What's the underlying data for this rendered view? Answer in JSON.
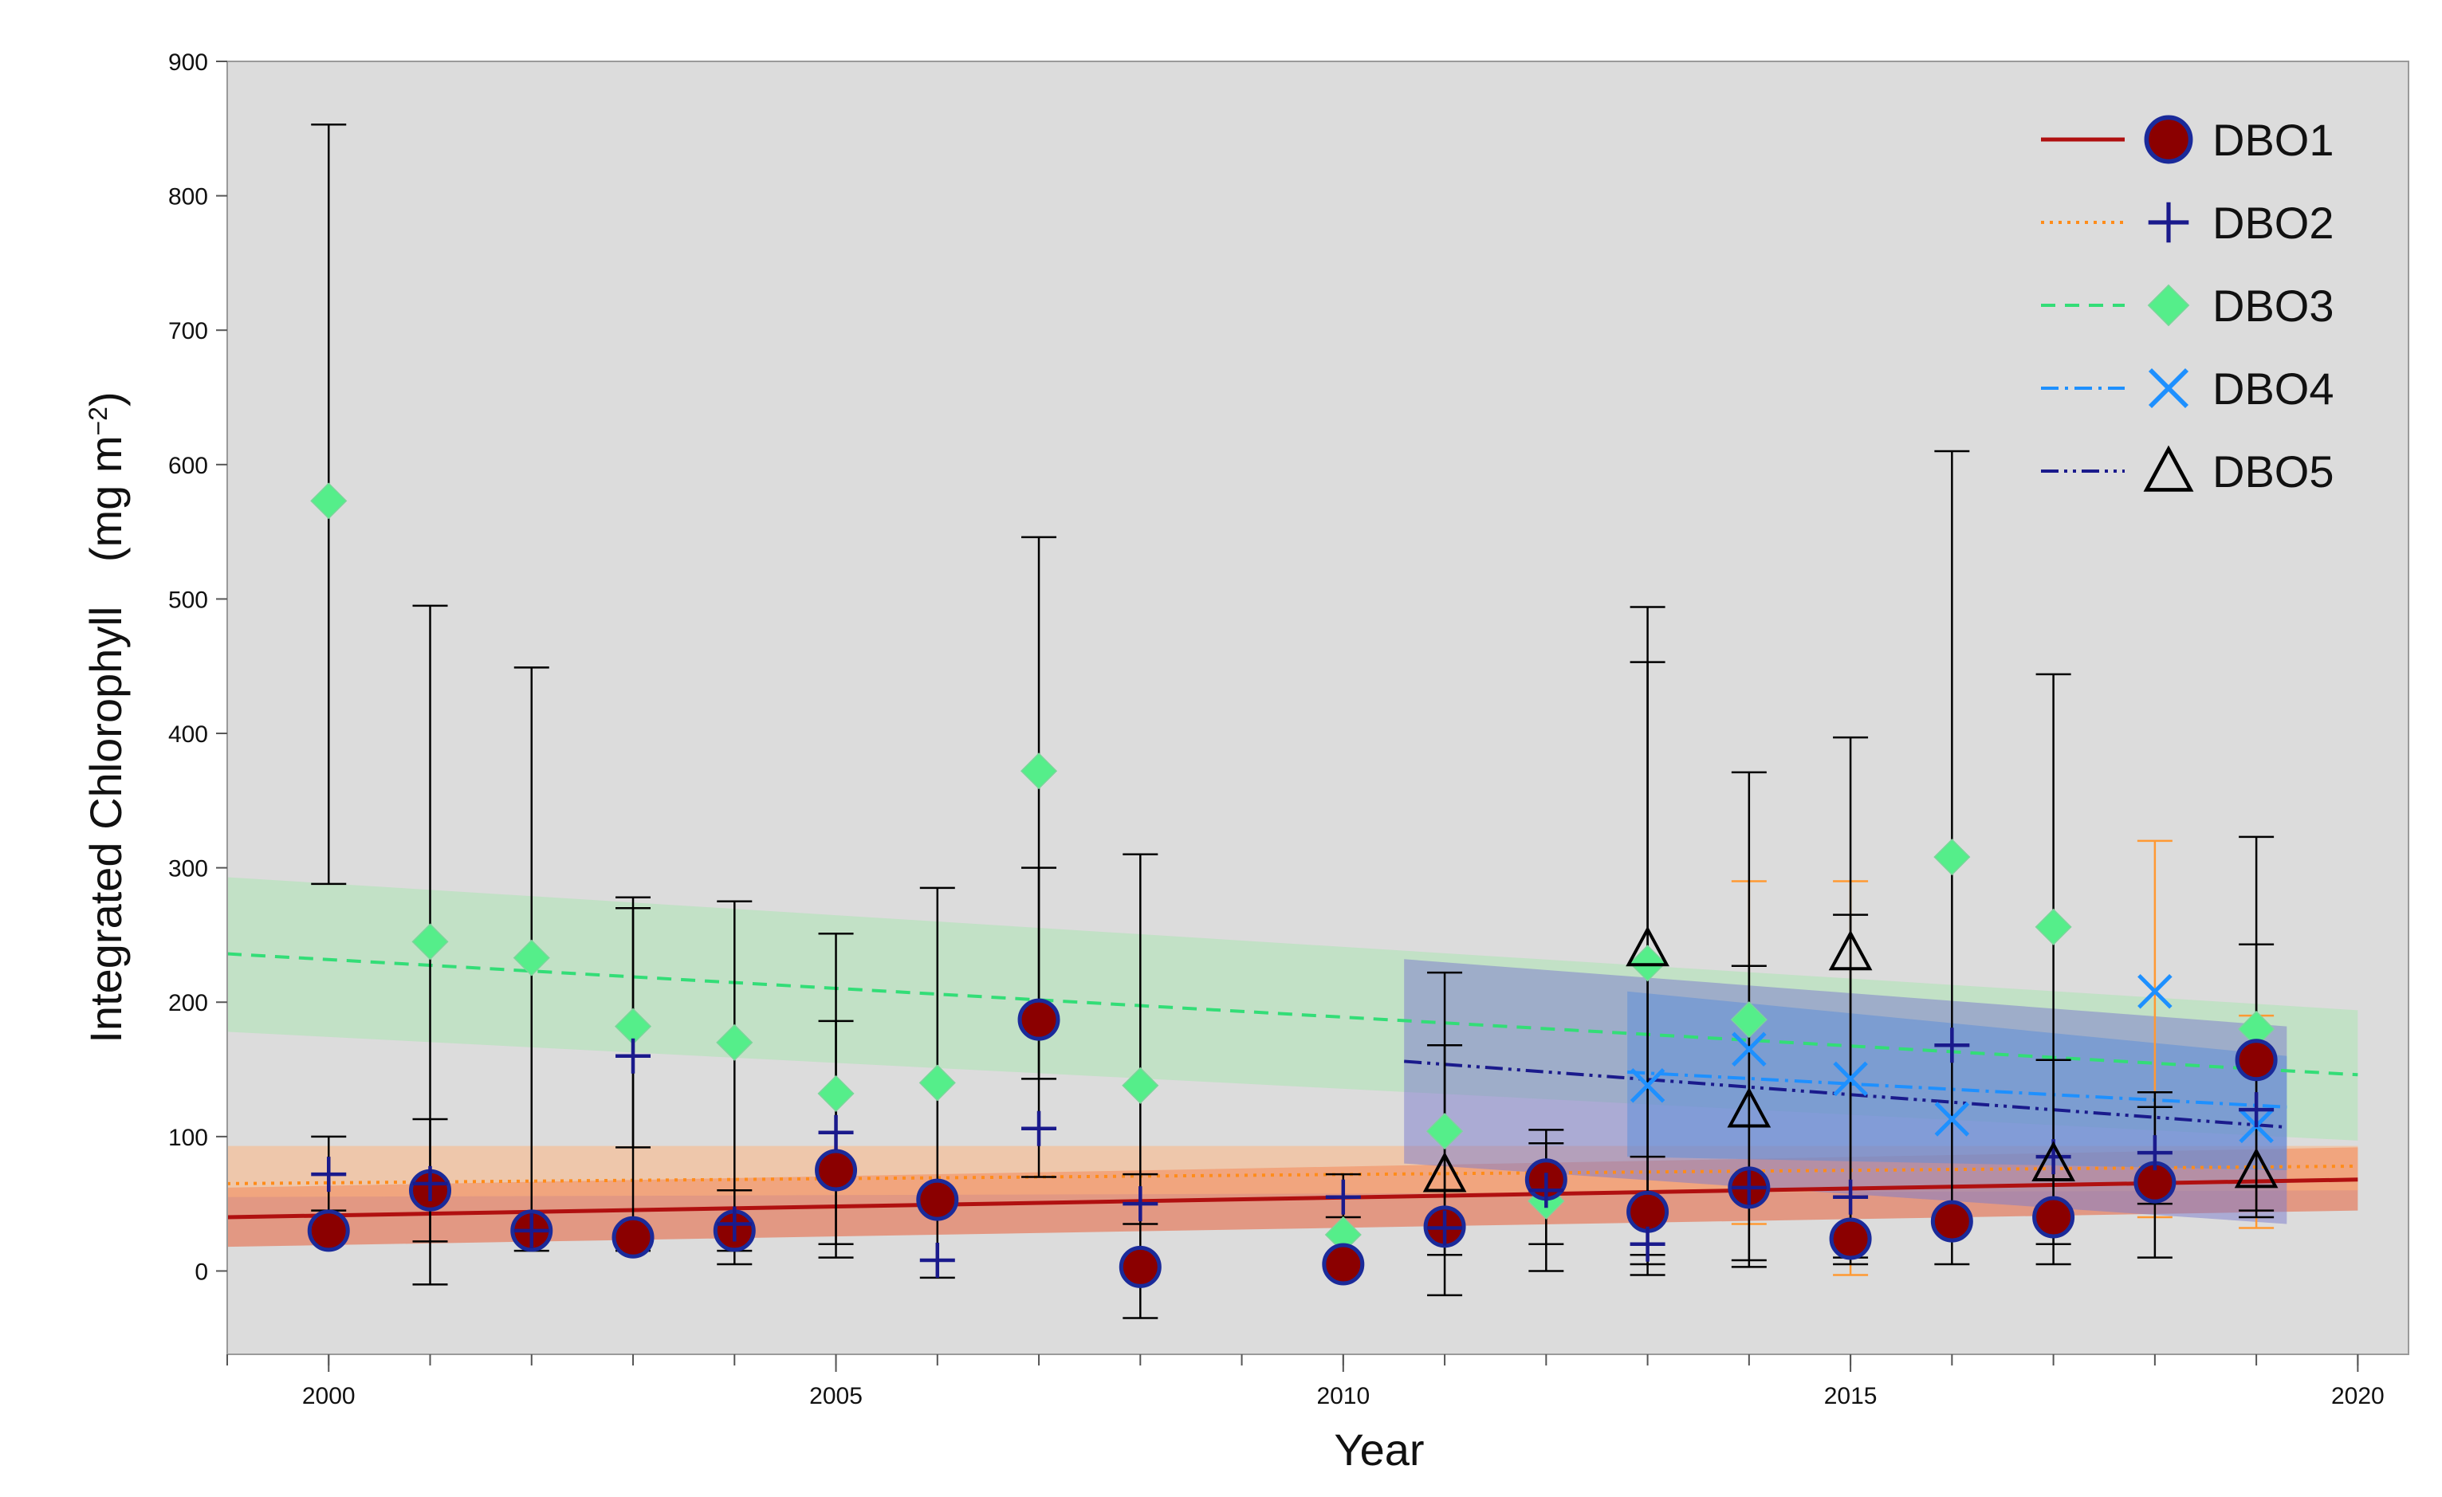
{
  "chart_data": {
    "type": "scatter",
    "title": "",
    "xlabel": "Year",
    "ylabel": "Integrated Chlorophyll",
    "ylabel_unit": "(mg m",
    "ylabel_unit_sup": "−2",
    "ylabel_unit_close": ")",
    "xlim": [
      1999,
      2020.5
    ],
    "ylim": [
      -62,
      900
    ],
    "x_ticks": [
      2000,
      2005,
      2010,
      2015,
      2020
    ],
    "y_ticks": [
      0,
      100,
      200,
      300,
      400,
      500,
      600,
      700,
      800,
      900
    ],
    "background": "#dcdcdc",
    "legend_position": "top-right",
    "series": [
      {
        "name": "DBO1",
        "marker": "circle",
        "marker_fill": "#8b0000",
        "marker_edge": "#1a2a9a",
        "line_color": "#b01010",
        "line_style": "solid",
        "band_color": "#e8603a",
        "trend": {
          "x": [
            1999,
            2020
          ],
          "y": [
            40,
            68
          ]
        },
        "band": {
          "x": [
            1999,
            2020
          ],
          "upper": [
            62,
            92
          ],
          "lower": [
            18,
            45
          ]
        },
        "points": [
          {
            "x": 2000,
            "y": 30
          },
          {
            "x": 2001,
            "y": 60
          },
          {
            "x": 2002,
            "y": 30
          },
          {
            "x": 2003,
            "y": 25
          },
          {
            "x": 2004,
            "y": 30
          },
          {
            "x": 2005,
            "y": 75
          },
          {
            "x": 2006,
            "y": 53
          },
          {
            "x": 2007,
            "y": 187
          },
          {
            "x": 2008,
            "y": 3
          },
          {
            "x": 2010,
            "y": 5
          },
          {
            "x": 2011,
            "y": 33
          },
          {
            "x": 2012,
            "y": 68
          },
          {
            "x": 2013,
            "y": 44
          },
          {
            "x": 2014,
            "y": 62
          },
          {
            "x": 2015,
            "y": 24
          },
          {
            "x": 2016,
            "y": 37
          },
          {
            "x": 2017,
            "y": 40
          },
          {
            "x": 2018,
            "y": 66
          },
          {
            "x": 2019,
            "y": 157
          }
        ]
      },
      {
        "name": "DBO2",
        "marker": "plus",
        "marker_color": "#1a1a8c",
        "line_color": "#ff8c1a",
        "line_style": "dotted",
        "band_color": "#ffb27a",
        "trend": {
          "x": [
            1999,
            2020
          ],
          "y": [
            65,
            78
          ]
        },
        "band": {
          "x": [
            1999,
            2020
          ],
          "upper": [
            93,
            93
          ],
          "lower": [
            55,
            60
          ]
        },
        "points": [
          {
            "x": 2000,
            "y": 72
          },
          {
            "x": 2001,
            "y": 65
          },
          {
            "x": 2002,
            "y": 30
          },
          {
            "x": 2003,
            "y": 160
          },
          {
            "x": 2004,
            "y": 35
          },
          {
            "x": 2005,
            "y": 103
          },
          {
            "x": 2006,
            "y": 8
          },
          {
            "x": 2007,
            "y": 106
          },
          {
            "x": 2008,
            "y": 50
          },
          {
            "x": 2010,
            "y": 55
          },
          {
            "x": 2011,
            "y": 32
          },
          {
            "x": 2012,
            "y": 60
          },
          {
            "x": 2013,
            "y": 20
          },
          {
            "x": 2014,
            "y": 62
          },
          {
            "x": 2015,
            "y": 55
          },
          {
            "x": 2016,
            "y": 168
          },
          {
            "x": 2017,
            "y": 85
          },
          {
            "x": 2018,
            "y": 88
          },
          {
            "x": 2019,
            "y": 120
          }
        ]
      },
      {
        "name": "DBO3",
        "marker": "diamond",
        "marker_color": "#55ee8a",
        "line_color": "#33dd77",
        "line_style": "dashed",
        "band_color": "#a8e6b0",
        "trend": {
          "x": [
            1999,
            2020
          ],
          "y": [
            236,
            146
          ]
        },
        "band": {
          "x": [
            1999,
            2020
          ],
          "upper": [
            293,
            194
          ],
          "lower": [
            178,
            97
          ]
        },
        "points": [
          {
            "x": 2000,
            "y": 573
          },
          {
            "x": 2001,
            "y": 245
          },
          {
            "x": 2002,
            "y": 233
          },
          {
            "x": 2003,
            "y": 182
          },
          {
            "x": 2004,
            "y": 170
          },
          {
            "x": 2005,
            "y": 132
          },
          {
            "x": 2006,
            "y": 140
          },
          {
            "x": 2007,
            "y": 372
          },
          {
            "x": 2008,
            "y": 138
          },
          {
            "x": 2010,
            "y": 27
          },
          {
            "x": 2011,
            "y": 104
          },
          {
            "x": 2012,
            "y": 52
          },
          {
            "x": 2013,
            "y": 229
          },
          {
            "x": 2014,
            "y": 187
          },
          {
            "x": 2016,
            "y": 308
          },
          {
            "x": 2017,
            "y": 256
          },
          {
            "x": 2019,
            "y": 180
          }
        ]
      },
      {
        "name": "DBO4",
        "marker": "x",
        "marker_color": "#1e90ff",
        "line_color": "#1e90ff",
        "line_style": "dashdot",
        "band_color": "#3aa0e8",
        "trend": {
          "x": [
            2012.8,
            2019.3
          ],
          "y": [
            148,
            122
          ]
        },
        "band": {
          "x": [
            2012.8,
            2019.3
          ],
          "upper": [
            208,
            160
          ],
          "lower": [
            85,
            75
          ]
        },
        "points": [
          {
            "x": 2013,
            "y": 138
          },
          {
            "x": 2014,
            "y": 165
          },
          {
            "x": 2015,
            "y": 143
          },
          {
            "x": 2016,
            "y": 113
          },
          {
            "x": 2018,
            "y": 208
          },
          {
            "x": 2019,
            "y": 108
          }
        ]
      },
      {
        "name": "DBO5",
        "marker": "triangle",
        "marker_color": "#000000",
        "line_color": "#1a1a8c",
        "line_style": "dashdotdot",
        "band_color": "#7a7acc",
        "trend": {
          "x": [
            2010.6,
            2019.3
          ],
          "y": [
            156,
            107
          ]
        },
        "band": {
          "x": [
            2010.6,
            2019.3
          ],
          "upper": [
            232,
            182
          ],
          "lower": [
            80,
            35
          ]
        },
        "points": [
          {
            "x": 2011,
            "y": 72
          },
          {
            "x": 2013,
            "y": 240
          },
          {
            "x": 2014,
            "y": 120
          },
          {
            "x": 2015,
            "y": 237
          },
          {
            "x": 2017,
            "y": 80
          },
          {
            "x": 2019,
            "y": 75
          }
        ]
      }
    ],
    "error_bars": [
      {
        "x": 2000,
        "color": "#000000",
        "low": 288,
        "high": 853
      },
      {
        "x": 2000,
        "color": "#000000",
        "low": 45,
        "high": 100
      },
      {
        "x": 2001,
        "color": "#000000",
        "low": 22,
        "high": 495
      },
      {
        "x": 2001,
        "color": "#000000",
        "low": -10,
        "high": 113
      },
      {
        "x": 2002,
        "color": "#000000",
        "low": 15,
        "high": 449
      },
      {
        "x": 2003,
        "color": "#000000",
        "low": 92,
        "high": 278
      },
      {
        "x": 2003,
        "color": "#000000",
        "low": 15,
        "high": 270
      },
      {
        "x": 2004,
        "color": "#000000",
        "low": 5,
        "high": 275
      },
      {
        "x": 2004,
        "color": "#000000",
        "low": 15,
        "high": 60
      },
      {
        "x": 2005,
        "color": "#000000",
        "low": 10,
        "high": 251
      },
      {
        "x": 2005,
        "color": "#000000",
        "low": 20,
        "high": 186
      },
      {
        "x": 2006,
        "color": "#000000",
        "low": -5,
        "high": 285
      },
      {
        "x": 2007,
        "color": "#000000",
        "low": 70,
        "high": 546
      },
      {
        "x": 2007,
        "color": "#000000",
        "low": 143,
        "high": 300
      },
      {
        "x": 2008,
        "color": "#000000",
        "low": -35,
        "high": 310
      },
      {
        "x": 2008,
        "color": "#000000",
        "low": 35,
        "high": 72
      },
      {
        "x": 2010,
        "color": "#000000",
        "low": 40,
        "high": 72
      },
      {
        "x": 2011,
        "color": "#000000",
        "low": -18,
        "high": 222
      },
      {
        "x": 2011,
        "color": "#000000",
        "low": 12,
        "high": 168
      },
      {
        "x": 2012,
        "color": "#000000",
        "low": 0,
        "high": 105
      },
      {
        "x": 2012,
        "color": "#000000",
        "low": 20,
        "high": 95
      },
      {
        "x": 2013,
        "color": "#000000",
        "low": -3,
        "high": 494
      },
      {
        "x": 2013,
        "color": "#000000",
        "low": 5,
        "high": 453
      },
      {
        "x": 2013,
        "color": "#000000",
        "low": 12,
        "high": 85
      },
      {
        "x": 2014,
        "color": "#ff9933",
        "low": 35,
        "high": 290
      },
      {
        "x": 2014,
        "color": "#000000",
        "low": 3,
        "high": 371
      },
      {
        "x": 2014,
        "color": "#000000",
        "low": 8,
        "high": 227
      },
      {
        "x": 2015,
        "color": "#ff9933",
        "low": -3,
        "high": 290
      },
      {
        "x": 2015,
        "color": "#000000",
        "low": 5,
        "high": 397
      },
      {
        "x": 2015,
        "color": "#000000",
        "low": 10,
        "high": 265
      },
      {
        "x": 2016,
        "color": "#000000",
        "low": 5,
        "high": 610
      },
      {
        "x": 2017,
        "color": "#000000",
        "low": 5,
        "high": 444
      },
      {
        "x": 2017,
        "color": "#000000",
        "low": 20,
        "high": 157
      },
      {
        "x": 2018,
        "color": "#ff9933",
        "low": 40,
        "high": 320
      },
      {
        "x": 2018,
        "color": "#000000",
        "low": 10,
        "high": 133
      },
      {
        "x": 2018,
        "color": "#000000",
        "low": 50,
        "high": 122
      },
      {
        "x": 2019,
        "color": "#ff9933",
        "low": 32,
        "high": 190
      },
      {
        "x": 2019,
        "color": "#000000",
        "low": 40,
        "high": 323
      },
      {
        "x": 2019,
        "color": "#000000",
        "low": 45,
        "high": 243
      }
    ]
  }
}
